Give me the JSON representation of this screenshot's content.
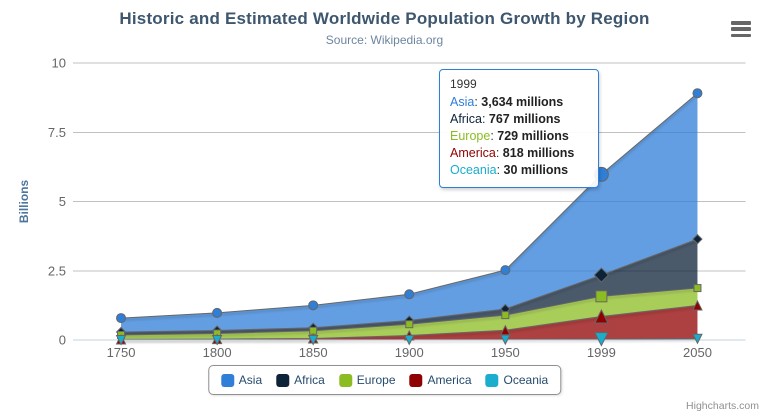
{
  "header": {
    "title": "Historic and Estimated Worldwide Population Growth by Region",
    "subtitle": "Source: Wikipedia.org"
  },
  "export_menu": {
    "icon": "hamburger-menu-icon"
  },
  "chart_data": {
    "type": "area",
    "stacking": "normal",
    "title": "Historic and Estimated Worldwide Population Growth by Region",
    "subtitle": "Source: Wikipedia.org",
    "categories": [
      "1750",
      "1800",
      "1850",
      "1900",
      "1950",
      "1999",
      "2050"
    ],
    "series": [
      {
        "name": "Asia",
        "color": "#2f7ed8",
        "marker": "circle",
        "values_millions": [
          502,
          635,
          809,
          947,
          1402,
          3634,
          5268
        ]
      },
      {
        "name": "Africa",
        "color": "#0d233a",
        "marker": "diamond",
        "values_millions": [
          106,
          107,
          111,
          133,
          221,
          767,
          1766
        ]
      },
      {
        "name": "Europe",
        "color": "#8bbc21",
        "marker": "square",
        "values_millions": [
          163,
          203,
          276,
          408,
          547,
          729,
          628
        ]
      },
      {
        "name": "America",
        "color": "#910000",
        "marker": "triangle",
        "values_millions": [
          18,
          31,
          54,
          156,
          339,
          818,
          1201
        ]
      },
      {
        "name": "Oceania",
        "color": "#1aadce",
        "marker": "triangle-down",
        "values_millions": [
          2,
          2,
          2,
          6,
          13,
          30,
          46
        ]
      }
    ],
    "unit": "millions",
    "ylabel": "Billions",
    "xlabel": "",
    "yticks": [
      0,
      2.5,
      5,
      7.5,
      10
    ],
    "ylim": [
      0,
      10
    ],
    "grid": true,
    "legend_position": "bottom",
    "line_color": "#666666",
    "fill_opacity": 0.75,
    "grid_color": "#C0C0C0",
    "axis_line_color": "#C0D0E0",
    "axis_label_color": "#666666",
    "yaxis_title_color": "#4d759e",
    "hover_category": "1999"
  },
  "tooltip": {
    "header": "1999",
    "border_color": "#2f7ed8",
    "rows": [
      {
        "name": "Asia",
        "value": "3,634 millions",
        "color": "#2f7ed8"
      },
      {
        "name": "Africa",
        "value": "767 millions",
        "color": "#0d233a"
      },
      {
        "name": "Europe",
        "value": "729 millions",
        "color": "#8bbc21"
      },
      {
        "name": "America",
        "value": "818 millions",
        "color": "#910000"
      },
      {
        "name": "Oceania",
        "value": "30 millions",
        "color": "#1aadce"
      }
    ]
  },
  "legend": {
    "items": [
      {
        "label": "Asia",
        "color": "#2f7ed8"
      },
      {
        "label": "Africa",
        "color": "#0d233a"
      },
      {
        "label": "Europe",
        "color": "#8bbc21"
      },
      {
        "label": "America",
        "color": "#910000"
      },
      {
        "label": "Oceania",
        "color": "#1aadce"
      }
    ]
  },
  "credits": {
    "label": "Highcharts.com"
  }
}
